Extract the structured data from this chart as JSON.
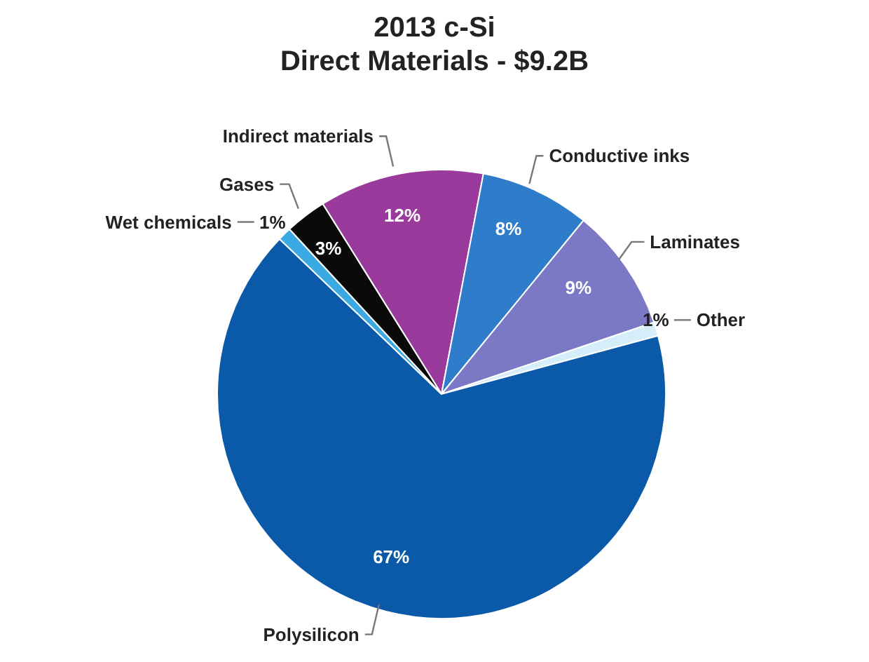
{
  "chart_data": {
    "type": "pie",
    "title": "2013 c-Si\nDirect Materials - $9.2B",
    "categories": [
      "Indirect materials",
      "Conductive inks",
      "Laminates",
      "Other",
      "Polysilicon",
      "Wet chemicals",
      "Gases"
    ],
    "values": [
      12,
      8,
      9,
      1,
      67,
      1,
      3
    ],
    "value_labels": [
      "12%",
      "8%",
      "9%",
      "1%",
      "67%",
      "1%",
      "3%"
    ],
    "colors": [
      "#9a3a9c",
      "#2f7ccb",
      "#7b79c6",
      "#d6eef9",
      "#0b5aa9",
      "#3ba9e2",
      "#0a0a0a"
    ],
    "legend": false
  }
}
